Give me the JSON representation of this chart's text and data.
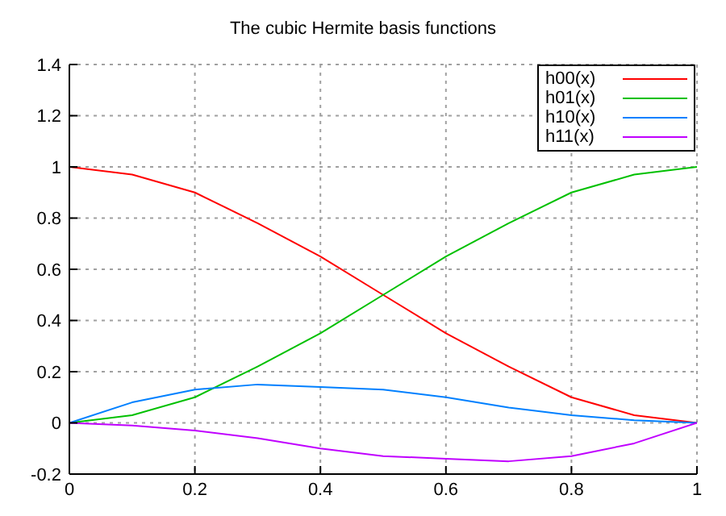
{
  "chart_data": {
    "type": "line",
    "title": "The cubic Hermite basis functions",
    "x": [
      0,
      0.1,
      0.2,
      0.3,
      0.4,
      0.5,
      0.6,
      0.7,
      0.8,
      0.9,
      1
    ],
    "series": [
      {
        "name": "h00(x)",
        "color": "#ff0000",
        "values": [
          1,
          0.97,
          0.9,
          0.78,
          0.65,
          0.5,
          0.35,
          0.22,
          0.1,
          0.03,
          0
        ]
      },
      {
        "name": "h01(x)",
        "color": "#00c000",
        "values": [
          0,
          0.03,
          0.1,
          0.22,
          0.35,
          0.5,
          0.65,
          0.78,
          0.9,
          0.97,
          1
        ]
      },
      {
        "name": "h10(x)",
        "color": "#0080ff",
        "values": [
          0,
          0.08,
          0.13,
          0.15,
          0.14,
          0.13,
          0.1,
          0.06,
          0.03,
          0.01,
          0
        ]
      },
      {
        "name": "h11(x)",
        "color": "#c000ff",
        "values": [
          0,
          -0.01,
          -0.03,
          -0.06,
          -0.1,
          -0.13,
          -0.14,
          -0.15,
          -0.13,
          -0.08,
          0
        ]
      }
    ],
    "xlim": [
      0,
      1
    ],
    "xticks": [
      0,
      0.2,
      0.4,
      0.6,
      0.8,
      1
    ],
    "ylim": [
      -0.2,
      1.4
    ],
    "yticks": [
      -0.2,
      0,
      0.2,
      0.4,
      0.6,
      0.8,
      1,
      1.2,
      1.4
    ],
    "grid": true,
    "legend": "top right",
    "marker": "none",
    "line_style": "solid"
  }
}
